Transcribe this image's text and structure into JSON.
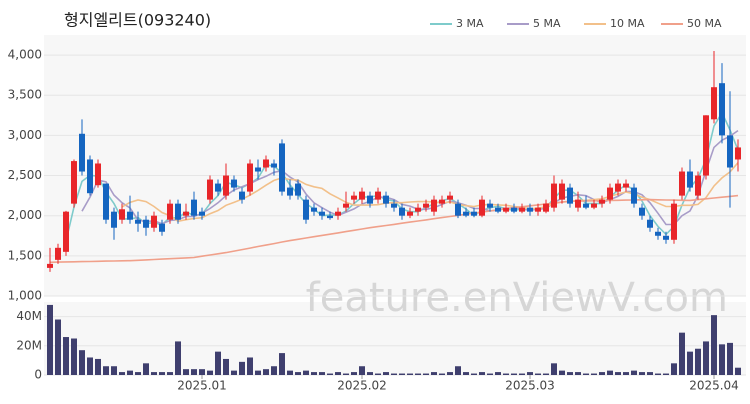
{
  "chart_data": {
    "type": "candlestick",
    "title": "형지엘리트(093240)",
    "watermark": "feature.enViewV.com",
    "categories": [
      null,
      null,
      null,
      null,
      null,
      null,
      null,
      null,
      null,
      null,
      null,
      null,
      null,
      null,
      null,
      null,
      null,
      null,
      null,
      "2025.01",
      null,
      null,
      null,
      null,
      null,
      null,
      null,
      null,
      null,
      null,
      null,
      null,
      null,
      null,
      null,
      null,
      null,
      null,
      null,
      "2025.02",
      null,
      null,
      null,
      null,
      null,
      null,
      null,
      null,
      null,
      null,
      null,
      null,
      null,
      null,
      null,
      null,
      null,
      null,
      null,
      null,
      "2025.03",
      null,
      null,
      null,
      null,
      null,
      null,
      null,
      null,
      null,
      null,
      null,
      null,
      null,
      null,
      null,
      null,
      null,
      null,
      null,
      null,
      null,
      null,
      "2025.04",
      null,
      null,
      null
    ],
    "open": [
      1350,
      1450,
      1550,
      2150,
      3020,
      2700,
      2380,
      2400,
      2050,
      1950,
      2050,
      1950,
      1950,
      1850,
      1900,
      1950,
      2150,
      2000,
      2200,
      2050,
      2200,
      2400,
      2250,
      2450,
      2300,
      2300,
      2600,
      2600,
      2650,
      2900,
      2350,
      2400,
      2200,
      2100,
      2050,
      2000,
      2000,
      2100,
      2200,
      2200,
      2250,
      2200,
      2250,
      2150,
      2100,
      2000,
      2050,
      2100,
      2050,
      2150,
      2200,
      2150,
      2050,
      2050,
      2000,
      2150,
      2100,
      2050,
      2100,
      2050,
      2100,
      2050,
      2050,
      2100,
      2200,
      2350,
      2100,
      2150,
      2100,
      2150,
      2200,
      2300,
      2350,
      2350,
      2100,
      1950,
      1800,
      1750,
      1700,
      2250,
      2550,
      2250,
      2500,
      3200,
      3650,
      3000,
      2700
    ],
    "high": [
      1600,
      1650,
      2060,
      2700,
      3200,
      2750,
      2700,
      2400,
      2100,
      2150,
      2250,
      2050,
      2000,
      2050,
      1950,
      2200,
      2200,
      2150,
      2300,
      2100,
      2500,
      2450,
      2650,
      2500,
      2350,
      2700,
      2700,
      2750,
      2700,
      2950,
      2450,
      2450,
      2250,
      2150,
      2100,
      2050,
      2100,
      2300,
      2300,
      2350,
      2300,
      2350,
      2300,
      2200,
      2150,
      2100,
      2150,
      2200,
      2250,
      2250,
      2300,
      2200,
      2100,
      2100,
      2250,
      2200,
      2150,
      2150,
      2150,
      2150,
      2150,
      2150,
      2200,
      2500,
      2450,
      2400,
      2300,
      2250,
      2200,
      2250,
      2400,
      2450,
      2450,
      2400,
      2150,
      2000,
      1850,
      1800,
      2200,
      2600,
      2700,
      2550,
      3250,
      4050,
      3900,
      3550,
      2950
    ],
    "low": [
      1300,
      1400,
      1500,
      2100,
      2500,
      2250,
      2350,
      1900,
      1700,
      1900,
      1900,
      1800,
      1750,
      1800,
      1750,
      1900,
      1900,
      1950,
      1950,
      1950,
      2150,
      2250,
      2200,
      2300,
      2150,
      2250,
      2450,
      2550,
      2500,
      2250,
      2200,
      2200,
      1900,
      2000,
      1950,
      1950,
      1950,
      2050,
      2150,
      2150,
      2100,
      2150,
      2100,
      2050,
      1950,
      1970,
      2000,
      2050,
      2000,
      2100,
      2150,
      1970,
      1980,
      1980,
      1980,
      2050,
      2030,
      2030,
      2030,
      2030,
      2000,
      2000,
      2030,
      2050,
      2150,
      2100,
      2050,
      2080,
      2080,
      2100,
      2150,
      2250,
      2300,
      2100,
      1950,
      1800,
      1700,
      1650,
      1650,
      2200,
      2300,
      2200,
      2450,
      3150,
      2900,
      2100,
      2550
    ],
    "close": [
      1400,
      1600,
      2050,
      2680,
      2550,
      2280,
      2650,
      1950,
      1850,
      2080,
      1950,
      1900,
      1850,
      2000,
      1800,
      2150,
      1950,
      2050,
      2000,
      2000,
      2450,
      2300,
      2500,
      2350,
      2200,
      2650,
      2550,
      2700,
      2600,
      2300,
      2250,
      2250,
      1950,
      2050,
      2000,
      1970,
      2050,
      2150,
      2250,
      2300,
      2150,
      2300,
      2150,
      2100,
      2000,
      2050,
      2100,
      2150,
      2200,
      2200,
      2250,
      2000,
      2000,
      2000,
      2200,
      2100,
      2050,
      2100,
      2050,
      2100,
      2050,
      2100,
      2150,
      2400,
      2400,
      2150,
      2200,
      2100,
      2150,
      2200,
      2350,
      2400,
      2400,
      2150,
      2000,
      1850,
      1750,
      1700,
      2150,
      2550,
      2350,
      2500,
      3250,
      3600,
      3000,
      2600,
      2850
    ],
    "up_color": "#e8262a",
    "down_color": "#1565c0",
    "series": [
      {
        "name": "3 MA",
        "color": "#7ecbcb",
        "values": [
          null,
          null,
          1683,
          2110,
          2427,
          2503,
          2493,
          2293,
          2150,
          1960,
          1960,
          1977,
          1900,
          1917,
          1883,
          1983,
          1967,
          2050,
          2000,
          2017,
          2150,
          2250,
          2417,
          2383,
          2350,
          2400,
          2467,
          2633,
          2617,
          2533,
          2383,
          2267,
          2150,
          2083,
          2000,
          2007,
          2007,
          2057,
          2150,
          2233,
          2233,
          2250,
          2200,
          2183,
          2083,
          2050,
          2050,
          2100,
          2150,
          2183,
          2217,
          2150,
          2083,
          2000,
          2067,
          2100,
          2117,
          2083,
          2067,
          2083,
          2067,
          2083,
          2100,
          2217,
          2317,
          2317,
          2250,
          2150,
          2150,
          2150,
          2233,
          2317,
          2383,
          2317,
          2183,
          2000,
          1867,
          1767,
          1867,
          2133,
          2350,
          2467,
          2700,
          3117,
          3283,
          3067,
          2817
        ]
      },
      {
        "name": "5 MA",
        "color": "#a89cc8",
        "values": [
          null,
          null,
          null,
          null,
          2056,
          2232,
          2442,
          2422,
          2256,
          2162,
          2096,
          1946,
          1926,
          1936,
          1900,
          1940,
          1950,
          1990,
          1990,
          2030,
          2090,
          2160,
          2250,
          2320,
          2360,
          2400,
          2450,
          2490,
          2540,
          2560,
          2480,
          2420,
          2270,
          2160,
          2100,
          2044,
          2004,
          2044,
          2084,
          2144,
          2180,
          2230,
          2230,
          2200,
          2140,
          2120,
          2080,
          2080,
          2100,
          2140,
          2180,
          2160,
          2130,
          2090,
          2090,
          2060,
          2070,
          2090,
          2100,
          2080,
          2070,
          2080,
          2090,
          2160,
          2220,
          2240,
          2260,
          2250,
          2200,
          2160,
          2200,
          2240,
          2300,
          2300,
          2260,
          2160,
          2030,
          1890,
          1890,
          2000,
          2060,
          2250,
          2560,
          2850,
          2940,
          2990,
          3060
        ]
      },
      {
        "name": "10 MA",
        "color": "#f2c08a",
        "values": [
          null,
          null,
          null,
          null,
          null,
          null,
          null,
          null,
          null,
          2110,
          2165,
          2195,
          2175,
          2115,
          2040,
          2000,
          1930,
          1950,
          1965,
          1975,
          2025,
          2065,
          2130,
          2165,
          2205,
          2255,
          2315,
          2380,
          2440,
          2470,
          2450,
          2445,
          2390,
          2360,
          2340,
          2272,
          2222,
          2167,
          2132,
          2132,
          2132,
          2137,
          2157,
          2162,
          2162,
          2170,
          2175,
          2175,
          2170,
          2160,
          2170,
          2140,
          2125,
          2115,
          2135,
          2140,
          2135,
          2130,
          2115,
          2105,
          2085,
          2095,
          2110,
          2150,
          2170,
          2175,
          2190,
          2190,
          2200,
          2210,
          2240,
          2270,
          2295,
          2270,
          2230,
          2200,
          2155,
          2115,
          2115,
          2130,
          2130,
          2140,
          2225,
          2370,
          2470,
          2545,
          2660
        ]
      },
      {
        "name": "50 MA",
        "color": "#f0a08a",
        "values": [
          1420,
          1422,
          1424,
          1426,
          1428,
          1430,
          1432,
          1434,
          1436,
          1438,
          1440,
          1445,
          1450,
          1455,
          1460,
          1465,
          1470,
          1475,
          1480,
          1495,
          1510,
          1525,
          1540,
          1559,
          1578,
          1597,
          1616,
          1634,
          1653,
          1672,
          1690,
          1706,
          1722,
          1738,
          1754,
          1770,
          1786,
          1802,
          1818,
          1834,
          1850,
          1864,
          1878,
          1892,
          1906,
          1920,
          1934,
          1948,
          1962,
          1976,
          1990,
          2004,
          2018,
          2031,
          2045,
          2059,
          2073,
          2086,
          2100,
          2111,
          2123,
          2134,
          2146,
          2157,
          2169,
          2180,
          2182,
          2184,
          2186,
          2188,
          2190,
          2192,
          2194,
          2196,
          2198,
          2200,
          2198,
          2196,
          2194,
          2192,
          2190,
          2200,
          2210,
          2220,
          2230,
          2240,
          2250
        ]
      }
    ],
    "ylim": [
      1000,
      4250
    ],
    "yticks": [
      {
        "value": 1000,
        "label": "1,000"
      },
      {
        "value": 1500,
        "label": "1,500"
      },
      {
        "value": 2000,
        "label": "2,000"
      },
      {
        "value": 2500,
        "label": "2,500"
      },
      {
        "value": 3000,
        "label": "3,000"
      },
      {
        "value": 3500,
        "label": "3,500"
      },
      {
        "value": 4000,
        "label": "4,000"
      }
    ],
    "grid": true,
    "volume": {
      "color": "#3f3f6e",
      "ylim": [
        0,
        50
      ],
      "yticks": [
        0,
        {
          "value": 20,
          "label": "20M"
        },
        {
          "value": 40,
          "label": "40M"
        }
      ],
      "values": [
        48,
        38,
        26,
        25,
        17,
        12,
        11,
        6,
        6,
        2,
        3,
        2,
        8,
        2,
        2,
        2,
        23,
        4,
        4,
        4,
        3,
        16,
        11,
        3,
        9,
        12,
        3,
        4,
        6,
        15,
        3,
        2,
        3,
        2,
        2,
        1,
        2,
        1,
        2,
        6,
        2,
        1,
        2,
        1,
        1,
        1,
        1,
        1,
        2,
        1,
        2,
        6,
        2,
        1,
        2,
        1,
        2,
        1,
        1,
        1,
        2,
        1,
        1,
        8,
        3,
        2,
        2,
        1,
        1,
        2,
        3,
        2,
        2,
        3,
        2,
        2,
        1,
        1,
        8,
        29,
        16,
        18,
        23,
        41,
        21,
        22,
        5
      ]
    }
  }
}
